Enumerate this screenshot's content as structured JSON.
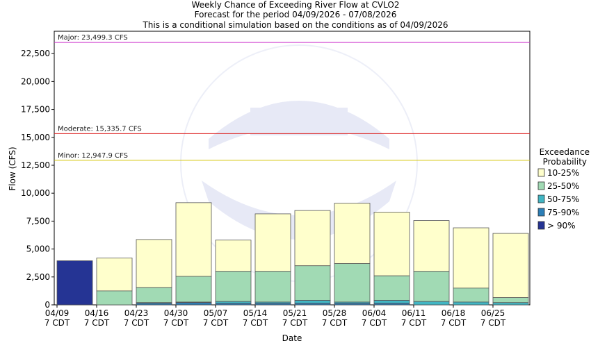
{
  "chart_data": {
    "type": "bar",
    "stacked": true,
    "title": "Weekly Chance of Exceeding River Flow at CVLO2",
    "subtitle": "Forecast for the period 04/09/2026 - 07/08/2026",
    "subtitle2": "This is a conditional simulation based on the conditions as of 04/09/2026",
    "xlabel": "Date",
    "ylabel": "Flow (CFS)",
    "ylim": [
      0,
      24500
    ],
    "yticks": [
      0,
      2500,
      5000,
      7500,
      10000,
      12500,
      15000,
      17500,
      20000,
      22500
    ],
    "ytick_labels": [
      "0",
      "2,500",
      "5,000",
      "7,500",
      "10,000",
      "12,500",
      "15,000",
      "17,500",
      "20,000",
      "22,500"
    ],
    "xtick_labels": [
      "04/09\n7 CDT",
      "04/16\n7 CDT",
      "04/23\n7 CDT",
      "04/30\n7 CDT",
      "05/07\n7 CDT",
      "05/14\n7 CDT",
      "05/21\n7 CDT",
      "05/28\n7 CDT",
      "06/04\n7 CDT",
      "06/11\n7 CDT",
      "06/18\n7 CDT",
      "06/25\n7 CDT"
    ],
    "grid": false,
    "legend_title": "Exceedance\nProbability",
    "legend_position": "right",
    "thresholds": [
      {
        "label": "Major: 23,499.3 CFS",
        "value": 23499.3,
        "color": "#cc33cc"
      },
      {
        "label": "Moderate: 15,335.7 CFS",
        "value": 15335.7,
        "color": "#dd2222"
      },
      {
        "label": "Minor: 12,947.9 CFS",
        "value": 12947.9,
        "color": "#d4c400"
      }
    ],
    "series": [
      {
        "name": "10-25%",
        "color": "#ffffcc",
        "ranges": [
          [
            3950,
            3950
          ],
          [
            1250,
            4200
          ],
          [
            1550,
            5850
          ],
          [
            2550,
            9150
          ],
          [
            3000,
            5800
          ],
          [
            3000,
            8150
          ],
          [
            3500,
            8450
          ],
          [
            3700,
            9100
          ],
          [
            2600,
            8300
          ],
          [
            3000,
            7550
          ],
          [
            1500,
            6900
          ],
          [
            650,
            6400
          ]
        ]
      },
      {
        "name": "25-50%",
        "color": "#a1dab4",
        "ranges": [
          [
            3950,
            3950
          ],
          [
            0,
            1250
          ],
          [
            200,
            1550
          ],
          [
            250,
            2550
          ],
          [
            300,
            3000
          ],
          [
            250,
            3000
          ],
          [
            400,
            3500
          ],
          [
            250,
            3700
          ],
          [
            400,
            2600
          ],
          [
            300,
            3000
          ],
          [
            250,
            1500
          ],
          [
            200,
            650
          ]
        ]
      },
      {
        "name": "50-75%",
        "color": "#41b6c4",
        "ranges": [
          [
            3950,
            3950
          ],
          [
            0,
            0
          ],
          [
            150,
            200
          ],
          [
            200,
            250
          ],
          [
            150,
            300
          ],
          [
            150,
            250
          ],
          [
            150,
            400
          ],
          [
            150,
            250
          ],
          [
            150,
            400
          ],
          [
            0,
            300
          ],
          [
            0,
            250
          ],
          [
            0,
            200
          ]
        ]
      },
      {
        "name": "75-90%",
        "color": "#2c7fb8",
        "ranges": [
          [
            3950,
            3950
          ],
          [
            0,
            0
          ],
          [
            0,
            150
          ],
          [
            0,
            200
          ],
          [
            0,
            150
          ],
          [
            0,
            150
          ],
          [
            0,
            150
          ],
          [
            0,
            150
          ],
          [
            0,
            150
          ],
          [
            0,
            0
          ],
          [
            0,
            0
          ],
          [
            0,
            0
          ]
        ]
      },
      {
        "name": "> 90%",
        "color": "#253494",
        "ranges": [
          [
            0,
            3950
          ],
          [
            0,
            0
          ],
          [
            0,
            0
          ],
          [
            0,
            0
          ],
          [
            0,
            0
          ],
          [
            0,
            0
          ],
          [
            0,
            0
          ],
          [
            0,
            0
          ],
          [
            0,
            0
          ],
          [
            0,
            0
          ],
          [
            0,
            0
          ],
          [
            0,
            0
          ]
        ]
      }
    ]
  }
}
